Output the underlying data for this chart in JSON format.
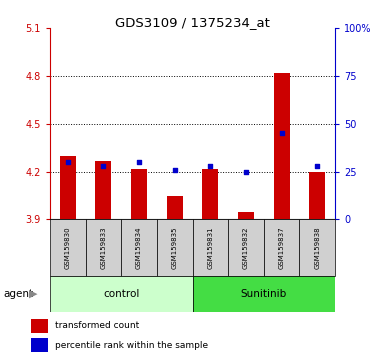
{
  "title": "GDS3109 / 1375234_at",
  "samples": [
    "GSM159830",
    "GSM159833",
    "GSM159834",
    "GSM159835",
    "GSM159831",
    "GSM159832",
    "GSM159837",
    "GSM159838"
  ],
  "bar_values": [
    4.3,
    4.27,
    4.22,
    4.05,
    4.22,
    3.95,
    4.82,
    4.2
  ],
  "percentile_values": [
    30,
    28,
    30,
    26,
    28,
    25,
    45,
    28
  ],
  "baseline": 3.9,
  "ylim_left": [
    3.9,
    5.1
  ],
  "ylim_right": [
    0,
    100
  ],
  "yticks_left": [
    3.9,
    4.2,
    4.5,
    4.8,
    5.1
  ],
  "yticks_right": [
    0,
    25,
    50,
    75,
    100
  ],
  "ytick_labels_right": [
    "0",
    "25",
    "50",
    "75",
    "100%"
  ],
  "grid_values": [
    4.2,
    4.5,
    4.8
  ],
  "bar_color": "#cc0000",
  "dot_color": "#0000cc",
  "control_group": [
    0,
    1,
    2,
    3
  ],
  "sunitinib_group": [
    4,
    5,
    6,
    7
  ],
  "control_label": "control",
  "sunitinib_label": "Sunitinib",
  "agent_label": "agent",
  "control_bg": "#ccffcc",
  "sunitinib_bg": "#44dd44",
  "sample_bg": "#d0d0d0",
  "legend_bar_label": "transformed count",
  "legend_dot_label": "percentile rank within the sample",
  "left_axis_color": "#cc0000",
  "right_axis_color": "#0000cc",
  "fig_width": 3.85,
  "fig_height": 3.54,
  "dpi": 100
}
